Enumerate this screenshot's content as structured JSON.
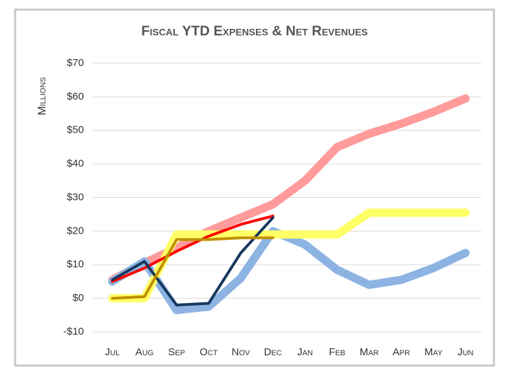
{
  "chart_data": {
    "type": "line",
    "title": "Fiscal YTD Expenses & Net Revenues",
    "y_label": "Millions",
    "categories": [
      "Jul",
      "Aug",
      "Sep",
      "Oct",
      "Nov",
      "Dec",
      "Jan",
      "Feb",
      "Mar",
      "Apr",
      "May",
      "Jun"
    ],
    "series": [
      {
        "color": "#ff9b9b",
        "values": [
          5.5,
          10.5,
          15,
          20,
          24,
          28,
          35,
          45,
          49,
          52,
          55.5,
          59.5
        ]
      },
      {
        "color": "#8db3e2",
        "values": [
          5,
          11,
          -3.5,
          -2.5,
          6,
          20,
          16,
          8.5,
          4,
          5.5,
          9,
          13.5
        ]
      },
      {
        "color": "#ffff66",
        "values": [
          0,
          0,
          19,
          19,
          19,
          19,
          19,
          19,
          25.5,
          25.5,
          25.5,
          25.5
        ]
      },
      {
        "color": "#ff0000",
        "values": [
          5,
          9,
          14,
          18.5,
          22,
          24.5,
          null,
          null,
          null,
          null,
          null,
          null
        ]
      },
      {
        "color": "#17375e",
        "values": [
          5.5,
          11,
          -2,
          -1.5,
          13.5,
          24,
          null,
          null,
          null,
          null,
          null,
          null
        ]
      },
      {
        "color": "#c09000",
        "values": [
          0,
          0.5,
          17.5,
          17.5,
          18,
          18,
          null,
          null,
          null,
          null,
          null,
          null
        ]
      }
    ],
    "ylim": [
      -10,
      70
    ],
    "yticks": [
      {
        "value": -10,
        "label": "-$10"
      },
      {
        "value": 0,
        "label": "$0"
      },
      {
        "value": 10,
        "label": "$10"
      },
      {
        "value": 20,
        "label": "$20"
      },
      {
        "value": 30,
        "label": "$30"
      },
      {
        "value": 40,
        "label": "$40"
      },
      {
        "value": 50,
        "label": "$50"
      },
      {
        "value": 60,
        "label": "$60"
      },
      {
        "value": 70,
        "label": "$70"
      }
    ],
    "grid": true
  }
}
